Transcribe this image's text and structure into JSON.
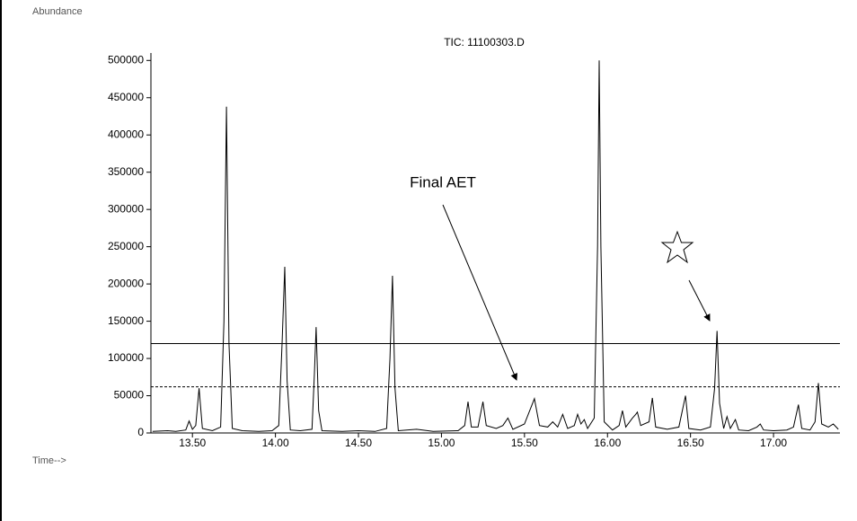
{
  "chart_data": {
    "type": "line",
    "title": "TIC: 11100303.D",
    "y_label": "Abundance",
    "x_label": "Time-->",
    "color": "#000000",
    "x": [
      13.26,
      13.35,
      13.4,
      13.46,
      13.48,
      13.5,
      13.52,
      13.54,
      13.56,
      13.62,
      13.67,
      13.69,
      13.705,
      13.72,
      13.74,
      13.8,
      13.9,
      13.98,
      14.02,
      14.04,
      14.056,
      14.07,
      14.09,
      14.15,
      14.22,
      14.235,
      14.245,
      14.26,
      14.28,
      14.4,
      14.5,
      14.6,
      14.67,
      14.69,
      14.705,
      14.72,
      14.74,
      14.85,
      14.95,
      15.1,
      15.14,
      15.16,
      15.18,
      15.22,
      15.25,
      15.27,
      15.33,
      15.37,
      15.4,
      15.43,
      15.5,
      15.56,
      15.59,
      15.64,
      15.67,
      15.7,
      15.73,
      15.76,
      15.8,
      15.82,
      15.84,
      15.86,
      15.88,
      15.92,
      15.94,
      15.95,
      15.96,
      15.98,
      16.03,
      16.07,
      16.09,
      16.11,
      16.15,
      16.17,
      16.18,
      16.2,
      16.25,
      16.27,
      16.29,
      16.36,
      16.43,
      16.47,
      16.49,
      16.56,
      16.62,
      16.645,
      16.66,
      16.675,
      16.7,
      16.72,
      16.74,
      16.77,
      16.79,
      16.85,
      16.9,
      16.92,
      16.94,
      17.0,
      17.08,
      17.12,
      17.15,
      17.17,
      17.22,
      17.25,
      17.27,
      17.29,
      17.33,
      17.36,
      17.39
    ],
    "values": [
      2000,
      3000,
      2000,
      4000,
      16000,
      5000,
      10000,
      60000,
      6000,
      3000,
      8000,
      150000,
      438000,
      120000,
      6000,
      3000,
      2000,
      3000,
      10000,
      120000,
      223000,
      70000,
      4000,
      3000,
      5000,
      80000,
      142000,
      30000,
      3000,
      2000,
      3000,
      2000,
      6000,
      100000,
      211000,
      60000,
      3000,
      5000,
      2000,
      3000,
      10000,
      42000,
      8000,
      8000,
      42000,
      10000,
      6000,
      10000,
      20000,
      5000,
      12000,
      46000,
      10000,
      8000,
      15000,
      8000,
      25000,
      6000,
      10000,
      25000,
      12000,
      18000,
      6000,
      20000,
      250000,
      500000,
      250000,
      15000,
      4000,
      10000,
      30000,
      8000,
      20000,
      25000,
      28000,
      10000,
      15000,
      47000,
      8000,
      5000,
      8000,
      50000,
      6000,
      4000,
      8000,
      60000,
      137000,
      40000,
      6000,
      22000,
      6000,
      18000,
      4000,
      3000,
      8000,
      12000,
      4000,
      3000,
      4000,
      8000,
      38000,
      6000,
      4000,
      15000,
      67000,
      12000,
      8000,
      12000,
      5000
    ],
    "xlim": [
      13.25,
      17.4
    ],
    "ylim": [
      0,
      510000
    ],
    "xticks": [
      {
        "value": 13.5,
        "label": "13.50"
      },
      {
        "value": 14,
        "label": "14.00"
      },
      {
        "value": 14.5,
        "label": "14.50"
      },
      {
        "value": 15,
        "label": "15.00"
      },
      {
        "value": 15.5,
        "label": "15.50"
      },
      {
        "value": 16,
        "label": "16.00"
      },
      {
        "value": 16.5,
        "label": "16.50"
      },
      {
        "value": 17,
        "label": "17.00"
      }
    ],
    "yticks": [
      0,
      50000,
      100000,
      150000,
      200000,
      250000,
      300000,
      350000,
      400000,
      450000,
      500000
    ],
    "reference_lines": [
      {
        "value": 120000,
        "style": "solid"
      },
      {
        "value": 62000,
        "style": "dashed"
      }
    ],
    "annotation": "Final AET"
  }
}
